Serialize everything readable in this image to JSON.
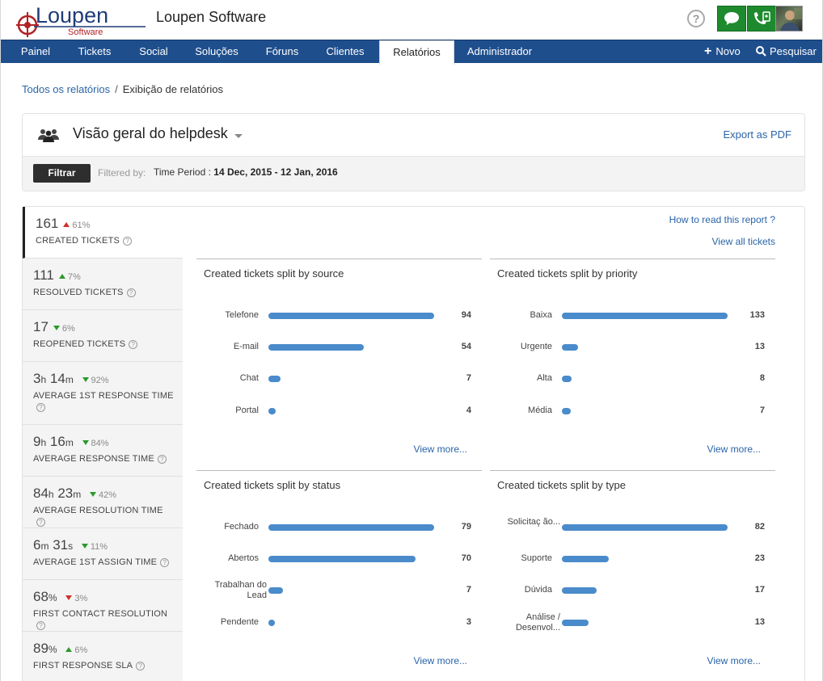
{
  "header": {
    "logo_text": "Loupen",
    "logo_sub": "Software",
    "brand": "Loupen Software",
    "help": "?"
  },
  "nav": {
    "items": [
      "Painel",
      "Tickets",
      "Social",
      "Soluções",
      "Fóruns",
      "Clientes",
      "Relatórios",
      "Administrador"
    ],
    "active": "Relatórios",
    "new_label": "Novo",
    "search_label": "Pesquisar"
  },
  "breadcrumb": {
    "root": "Todos os relatórios",
    "sep": "/",
    "current": "Exibição de relatórios"
  },
  "report": {
    "title": "Visão geral do helpdesk",
    "export": "Export as PDF",
    "filter_btn": "Filtrar",
    "filtered_by": "Filtered by:",
    "time_label": "Time Period :",
    "time_value": "14 Dec, 2015 - 12 Jan, 2016"
  },
  "links": {
    "how_read": "How to read this report ?",
    "view_all": "View all tickets",
    "view_more": "View more..."
  },
  "metrics": [
    {
      "parts": [
        {
          "n": "161",
          "u": ""
        }
      ],
      "change": "61%",
      "dir": "up",
      "good": false,
      "label": "CREATED TICKETS"
    },
    {
      "parts": [
        {
          "n": "111",
          "u": ""
        }
      ],
      "change": "7%",
      "dir": "up",
      "good": true,
      "label": "RESOLVED TICKETS"
    },
    {
      "parts": [
        {
          "n": "17",
          "u": ""
        }
      ],
      "change": "6%",
      "dir": "down",
      "good": true,
      "label": "REOPENED TICKETS"
    },
    {
      "parts": [
        {
          "n": "3",
          "u": "h"
        },
        {
          "n": "14",
          "u": "m"
        }
      ],
      "change": "92%",
      "dir": "down",
      "good": true,
      "label": "AVERAGE 1ST RESPONSE TIME"
    },
    {
      "parts": [
        {
          "n": "9",
          "u": "h"
        },
        {
          "n": "16",
          "u": "m"
        }
      ],
      "change": "84%",
      "dir": "down",
      "good": true,
      "label": "AVERAGE RESPONSE TIME"
    },
    {
      "parts": [
        {
          "n": "84",
          "u": "h"
        },
        {
          "n": "23",
          "u": "m"
        }
      ],
      "change": "42%",
      "dir": "down",
      "good": true,
      "label": "AVERAGE RESOLUTION TIME"
    },
    {
      "parts": [
        {
          "n": "6",
          "u": "m"
        },
        {
          "n": "31",
          "u": "s"
        }
      ],
      "change": "11%",
      "dir": "down",
      "good": true,
      "label": "AVERAGE 1ST ASSIGN TIME"
    },
    {
      "parts": [
        {
          "n": "68",
          "u": "%"
        }
      ],
      "change": "3%",
      "dir": "down",
      "good": false,
      "label": "FIRST CONTACT RESOLUTION"
    },
    {
      "parts": [
        {
          "n": "89",
          "u": "%"
        }
      ],
      "change": "6%",
      "dir": "up",
      "good": true,
      "label": "FIRST RESPONSE SLA"
    }
  ],
  "chart_data": [
    {
      "type": "bar",
      "title": "Created tickets split by source",
      "categories": [
        "Telefone",
        "E-mail",
        "Chat",
        "Portal"
      ],
      "values": [
        94,
        54,
        7,
        4
      ]
    },
    {
      "type": "bar",
      "title": "Created tickets split by priority",
      "categories": [
        "Baixa",
        "Urgente",
        "Alta",
        "Média"
      ],
      "values": [
        133,
        13,
        8,
        7
      ]
    },
    {
      "type": "bar",
      "title": "Created tickets split by status",
      "categories": [
        "Fechado",
        "Abertos",
        "Trabalhan do Lead",
        "Pendente"
      ],
      "values": [
        79,
        70,
        7,
        3
      ]
    },
    {
      "type": "bar",
      "title": "Created tickets split by type",
      "categories": [
        "Solicitaç ão...",
        "Suporte",
        "Dúvida",
        "Análise / Desenvol..."
      ],
      "values": [
        82,
        23,
        17,
        13
      ]
    }
  ],
  "colors": {
    "nav": "#1f4e8c",
    "bar": "#4a8bcb",
    "link": "#2a64a8",
    "green_btn": "#1e8a2e"
  }
}
